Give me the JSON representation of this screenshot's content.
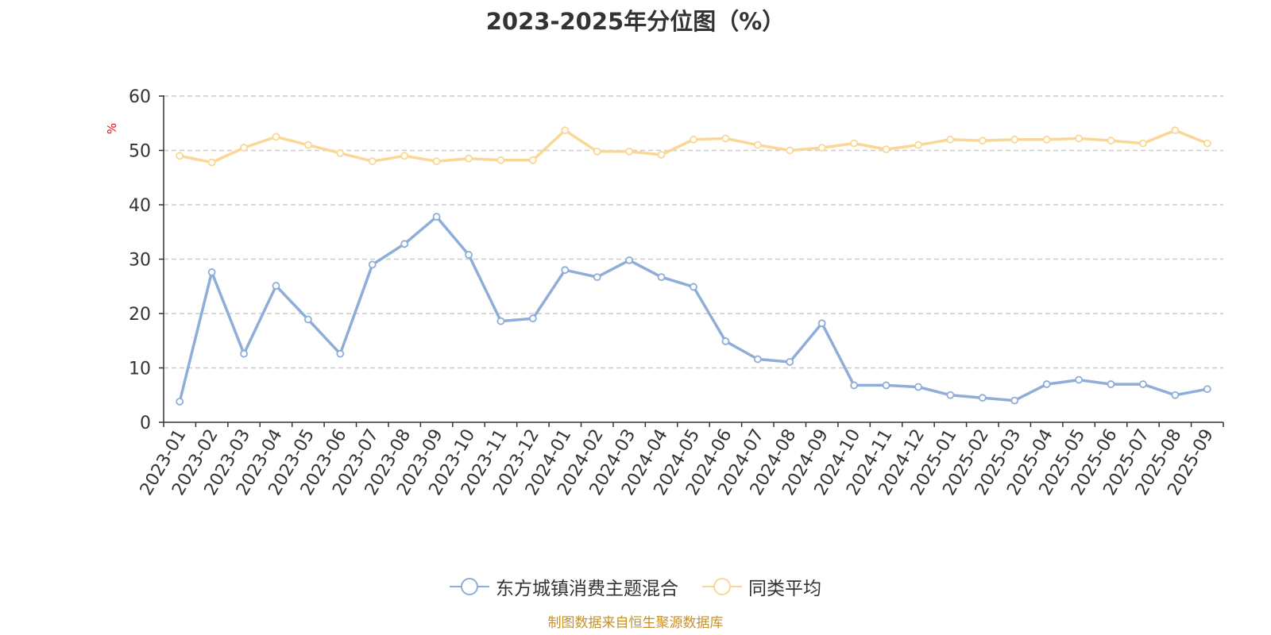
{
  "chart_data": {
    "type": "line",
    "title": "2023-2025年分位图（%）",
    "ylabel": "%",
    "xlabel": "",
    "ylim": [
      0,
      60
    ],
    "yticks": [
      "0",
      "10",
      "20",
      "30",
      "40",
      "50",
      "60"
    ],
    "grid": true,
    "legend_position": "bottom",
    "categories": [
      "2023-01",
      "2023-02",
      "2023-03",
      "2023-04",
      "2023-05",
      "2023-06",
      "2023-07",
      "2023-08",
      "2023-09",
      "2023-10",
      "2023-11",
      "2023-12",
      "2024-01",
      "2024-02",
      "2024-03",
      "2024-04",
      "2024-05",
      "2024-06",
      "2024-07",
      "2024-08",
      "2024-09",
      "2024-10",
      "2024-11",
      "2024-12",
      "2025-01",
      "2025-02",
      "2025-03",
      "2025-04",
      "2025-05",
      "2025-06",
      "2025-07",
      "2025-08",
      "2025-09"
    ],
    "series": [
      {
        "name": "东方城镇消费主题混合",
        "color": "#8eadd8",
        "values": [
          3.8,
          27.6,
          12.6,
          25.1,
          18.9,
          12.6,
          29.0,
          32.8,
          37.8,
          30.8,
          18.6,
          19.1,
          28.0,
          26.7,
          29.8,
          26.7,
          24.9,
          14.9,
          11.6,
          11.1,
          18.2,
          6.8,
          6.8,
          6.5,
          5.0,
          4.5,
          4.0,
          7.0,
          7.8,
          7.0,
          7.0,
          5.0,
          6.1
        ]
      },
      {
        "name": "同类平均",
        "color": "#fad795",
        "values": [
          49.0,
          47.8,
          50.5,
          52.5,
          51.0,
          49.5,
          48.0,
          49.0,
          48.0,
          48.5,
          48.2,
          48.2,
          53.7,
          49.8,
          49.8,
          49.2,
          52.0,
          52.2,
          51.0,
          50.0,
          50.5,
          51.3,
          50.2,
          51.0,
          52.0,
          51.8,
          52.0,
          52.0,
          52.2,
          51.8,
          51.3,
          53.7,
          51.3
        ]
      }
    ]
  },
  "source_text": "制图数据来自恒生聚源数据库"
}
